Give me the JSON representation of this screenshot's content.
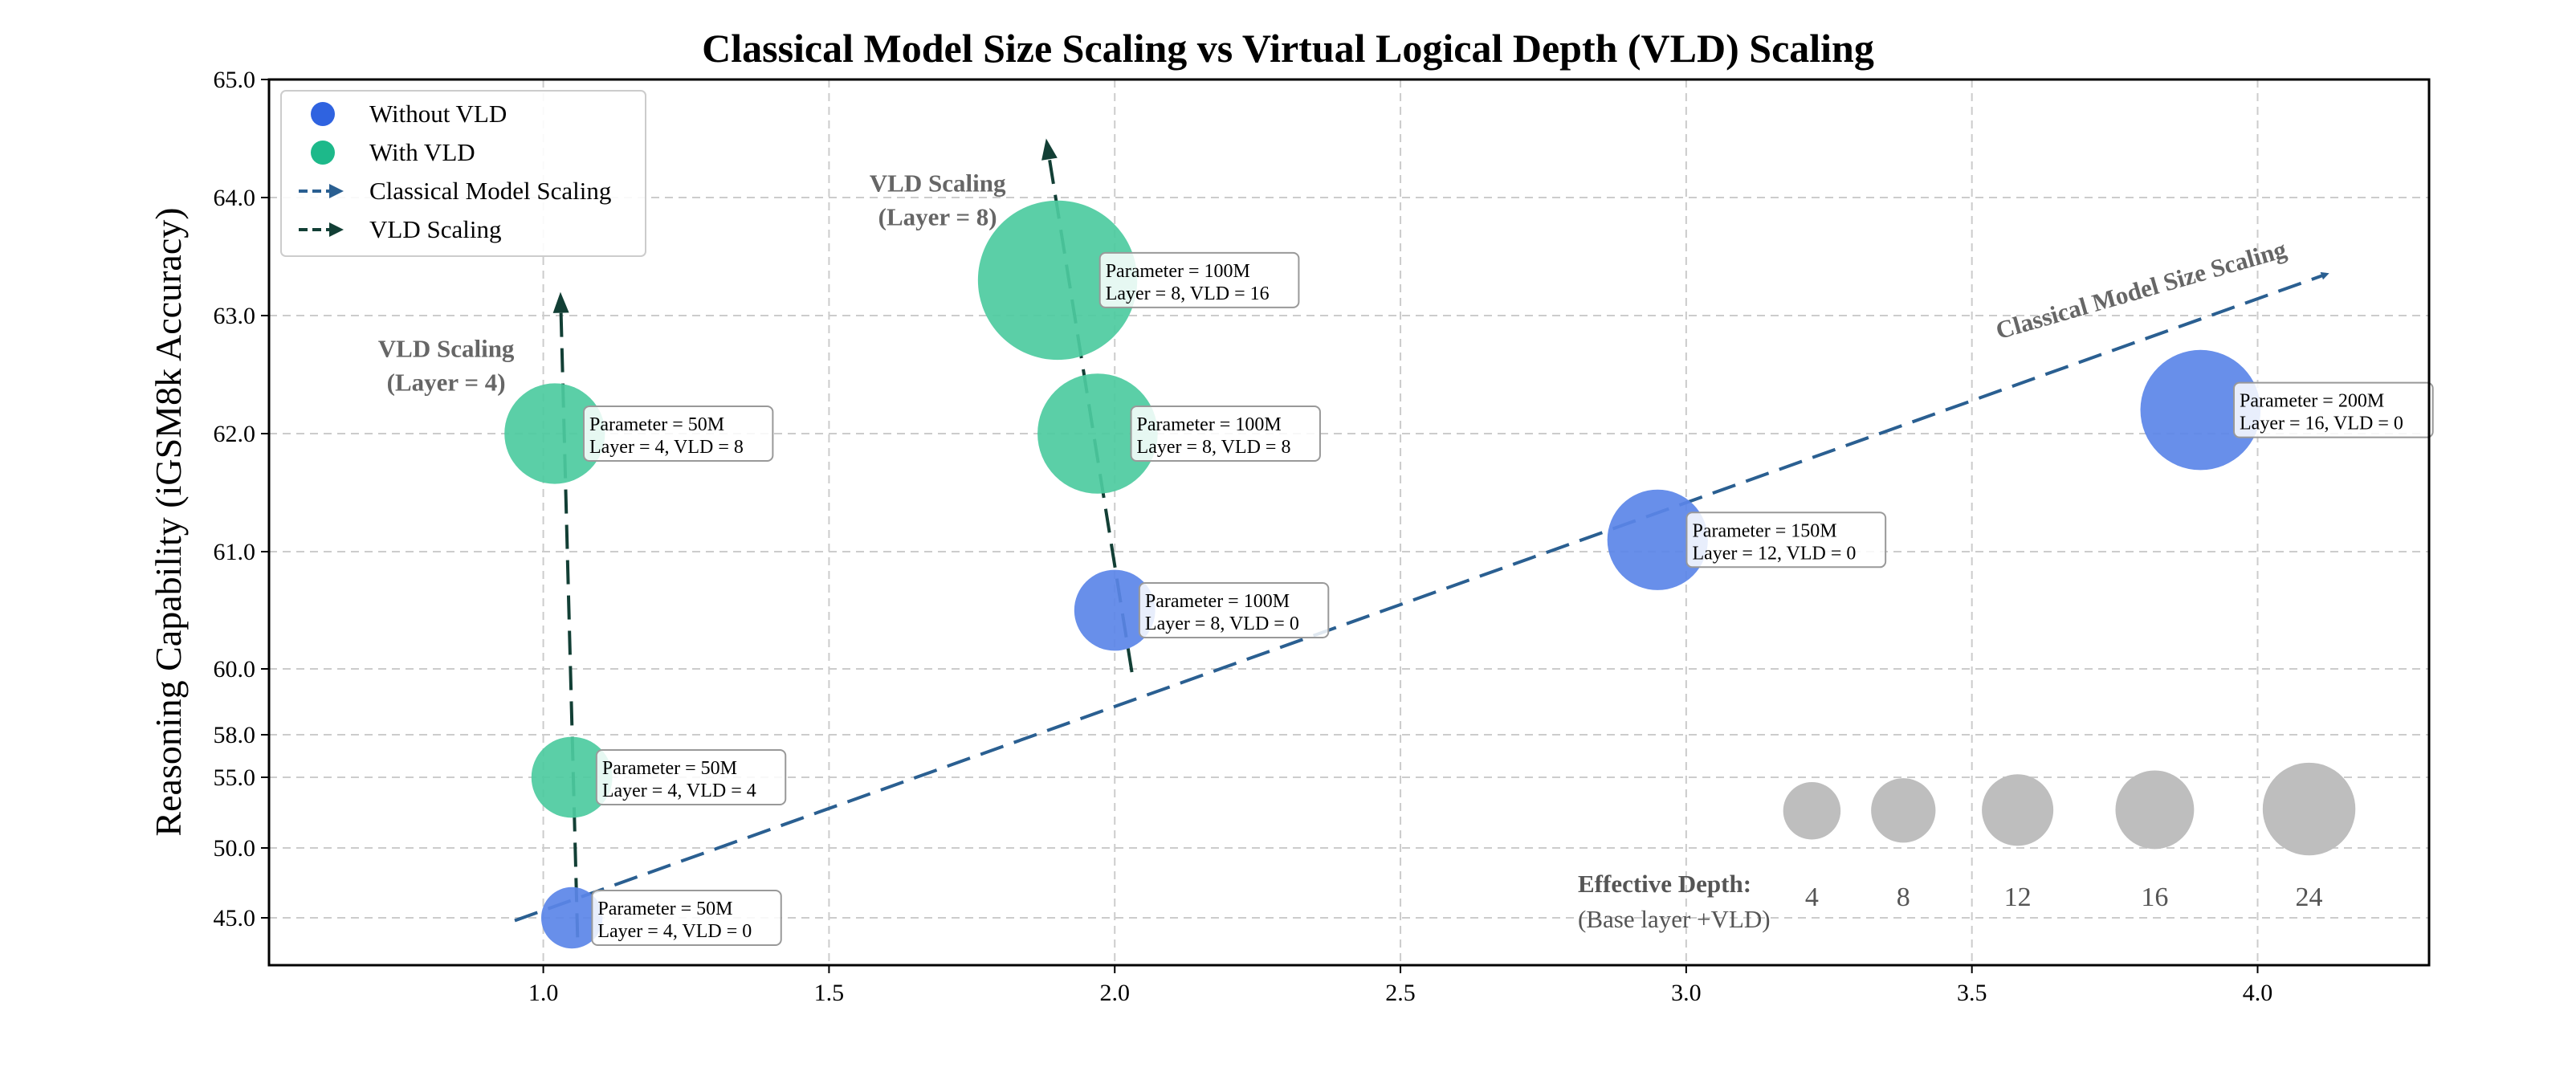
{
  "chart_data": {
    "type": "scatter",
    "title": "Classical Model Size Scaling vs Virtual Logical Depth (VLD) Scaling",
    "xlabel": "",
    "ylabel": "Reasoning Capability (iGSM8k Accuracy)",
    "xlim": [
      0.52,
      4.3
    ],
    "x_ticks": [
      1.0,
      1.5,
      2.0,
      2.5,
      3.0,
      3.5,
      4.0
    ],
    "x_tick_labels": [
      "1.0",
      "1.5",
      "2.0",
      "2.5",
      "3.0",
      "3.5",
      "4.0"
    ],
    "y_ticks": [
      "45.0",
      "50.0",
      "55.0",
      "58.0",
      "60.0",
      "61.0",
      "62.0",
      "63.0",
      "64.0",
      "65.0"
    ],
    "grid": true,
    "legend_position": "top-left",
    "legend": [
      {
        "label": "Without VLD",
        "marker": "circle",
        "color": "#2F63E0"
      },
      {
        "label": "With VLD",
        "marker": "circle",
        "color": "#1DB98A"
      },
      {
        "label": "Classical Model Scaling",
        "marker": "dashed-arrow",
        "color": "#2A5F91"
      },
      {
        "label": "VLD Scaling",
        "marker": "dashed-arrow",
        "color": "#123F35"
      }
    ],
    "colors": {
      "without_vld": "#5B86E8",
      "with_vld": "#4DCBA0",
      "classical_arrow": "#2A5F91",
      "vld_arrow": "#123F35",
      "size_legend": "#BEBEBE"
    },
    "series": [
      {
        "name": "Without VLD",
        "points": [
          {
            "x": 1.05,
            "y": 45.0,
            "depth": 4,
            "label_lines": [
              "Parameter = 50M",
              "Layer = 4, VLD = 0"
            ]
          },
          {
            "x": 2.0,
            "y": 60.5,
            "depth": 8,
            "label_lines": [
              "Parameter = 100M",
              "Layer = 8, VLD = 0"
            ]
          },
          {
            "x": 2.95,
            "y": 61.1,
            "depth": 12,
            "label_lines": [
              "Parameter = 150M",
              "Layer = 12, VLD = 0"
            ]
          },
          {
            "x": 3.9,
            "y": 62.2,
            "depth": 16,
            "label_lines": [
              "Parameter = 200M",
              "Layer = 16, VLD = 0"
            ]
          }
        ]
      },
      {
        "name": "With VLD",
        "points": [
          {
            "x": 1.05,
            "y": 55.0,
            "depth": 8,
            "label_lines": [
              "Parameter = 50M",
              "Layer = 4, VLD = 4"
            ]
          },
          {
            "x": 1.02,
            "y": 62.0,
            "depth": 12,
            "label_lines": [
              "Parameter = 50M",
              "Layer = 4, VLD = 8"
            ]
          },
          {
            "x": 1.97,
            "y": 62.0,
            "depth": 16,
            "label_lines": [
              "Parameter = 100M",
              "Layer = 8, VLD = 8"
            ]
          },
          {
            "x": 1.9,
            "y": 63.3,
            "depth": 24,
            "label_lines": [
              "Parameter = 100M",
              "Layer = 8, VLD = 16"
            ]
          }
        ]
      }
    ],
    "arrows": [
      {
        "name": "Classical Model Scaling",
        "from": [
          0.95,
          44.8
        ],
        "to": [
          4.12,
          63.35
        ]
      },
      {
        "name": "VLD Scaling (Layer = 4)",
        "from": [
          1.06,
          43.6
        ],
        "to": [
          1.03,
          63.2
        ]
      },
      {
        "name": "VLD Scaling (Layer = 8)",
        "from": [
          2.03,
          59.9
        ],
        "to": [
          1.88,
          64.5
        ]
      }
    ],
    "annotations": [
      {
        "lines": [
          "VLD Scaling",
          "(Layer = 4)"
        ],
        "x": 0.83,
        "y": 62.65
      },
      {
        "lines": [
          "VLD Scaling",
          "(Layer = 8)"
        ],
        "x": 1.69,
        "y": 64.05
      },
      {
        "lines": [
          "Classical Model Size Scaling"
        ],
        "x": 3.8,
        "y": 63.15
      }
    ],
    "size_legend": {
      "title": "Effective Depth:",
      "subtitle": "(Base layer +VLD)",
      "depths": [
        4,
        8,
        12,
        16,
        24
      ]
    }
  }
}
